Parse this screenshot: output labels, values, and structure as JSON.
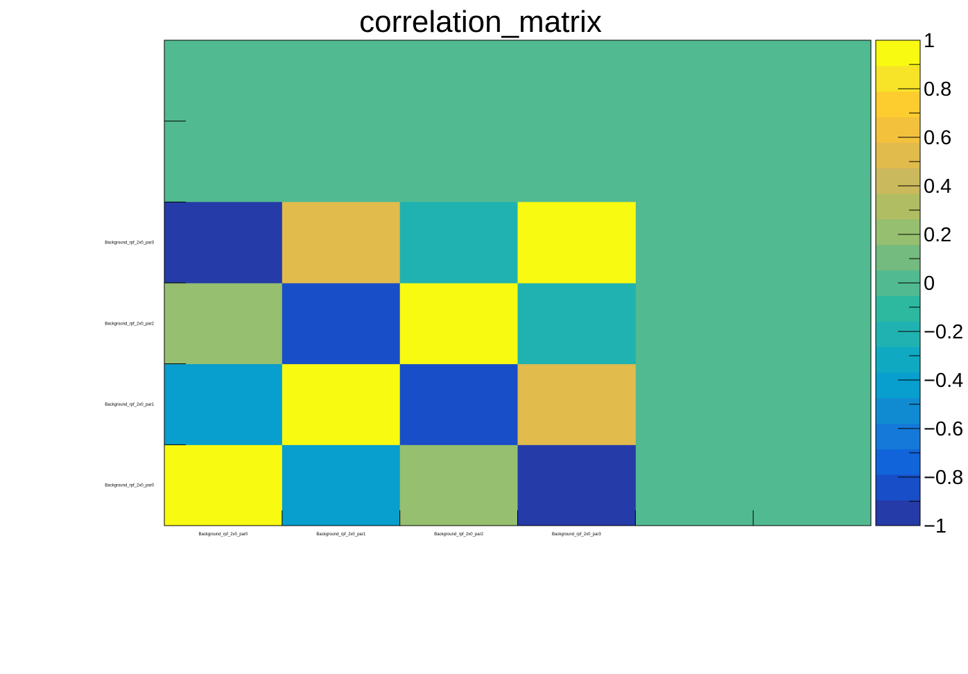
{
  "chart_data": {
    "type": "heatmap",
    "title": "correlation_matrix",
    "x_labels": [
      "Background_rpf_2x0_par0",
      "Background_rpf_2x0_par1",
      "Background_rpf_2x0_par2",
      "Background_rpf_2x0_par3"
    ],
    "y_labels": [
      "Background_rpf_2x0_par0",
      "Background_rpf_2x0_par1",
      "Background_rpf_2x0_par2",
      "Background_rpf_2x0_par3"
    ],
    "n_x_bins": 6,
    "n_y_bins": 6,
    "values": [
      [
        1.0,
        -0.4,
        0.25,
        -1.0
      ],
      [
        -0.4,
        1.0,
        -0.85,
        0.5
      ],
      [
        0.25,
        -0.85,
        1.0,
        -0.25
      ],
      [
        -1.0,
        0.5,
        -0.25,
        1.0
      ]
    ],
    "empty_value": 0,
    "zlim": [
      -1,
      1
    ],
    "colorbar_ticks": [
      "1",
      "0.8",
      "0.6",
      "0.4",
      "0.2",
      "0",
      "−0.2",
      "−0.4",
      "−0.6",
      "−0.8",
      "−1"
    ],
    "palette": [
      "#253ba7",
      "#184ec8",
      "#1164d9",
      "#1479d8",
      "#108bd1",
      "#089ecd",
      "#10a9c2",
      "#20b2b1",
      "#2db9a0",
      "#51ba91",
      "#74bb7f",
      "#96bf6f",
      "#b1bd62",
      "#cbb95d",
      "#e2bb4d",
      "#f4c13d",
      "#fdcd30",
      "#f7e327",
      "#f9fa11"
    ],
    "legend": "colorbar-right",
    "grid": false
  }
}
